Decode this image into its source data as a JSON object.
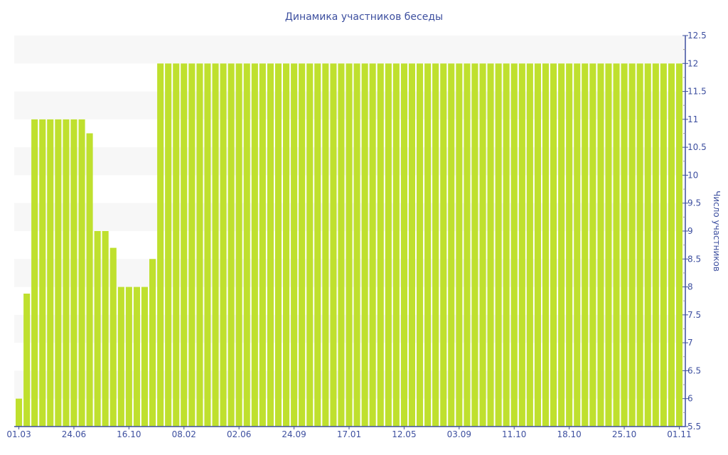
{
  "chart_data": {
    "type": "bar",
    "title": "Динамика участников беседы",
    "xlabel": "",
    "ylabel": "Число участников",
    "ylim": [
      5.5,
      12.5
    ],
    "ytick_step": 0.5,
    "yaxis_side": "right",
    "grid": "alternating horizontal bands",
    "x_tick_labels": [
      "01.03",
      "24.06",
      "16.10",
      "08.02",
      "02.06",
      "24.09",
      "17.01",
      "12.05",
      "03.09",
      "11.10",
      "18.10",
      "25.10",
      "01.11"
    ],
    "x_tick_every": 7,
    "values": [
      6,
      7.88,
      11,
      11,
      11,
      11,
      11,
      11,
      11,
      10.75,
      9,
      9,
      8.7,
      8,
      8,
      8,
      8,
      8.5,
      12,
      12,
      12,
      12,
      12,
      12,
      12,
      12,
      12,
      12,
      12,
      12,
      12,
      12,
      12,
      12,
      12,
      12,
      12,
      12,
      12,
      12,
      12,
      12,
      12,
      12,
      12,
      12,
      12,
      12,
      12,
      12,
      12,
      12,
      12,
      12,
      12,
      12,
      12,
      12,
      12,
      12,
      12,
      12,
      12,
      12,
      12,
      12,
      12,
      12,
      12,
      12,
      12,
      12,
      12,
      12,
      12,
      12,
      12,
      12,
      12,
      12,
      12,
      12,
      12,
      12,
      12
    ],
    "colors": {
      "bar": "#bfe02e",
      "axis": "#3d4f9f",
      "band": "#f7f7f7"
    }
  }
}
